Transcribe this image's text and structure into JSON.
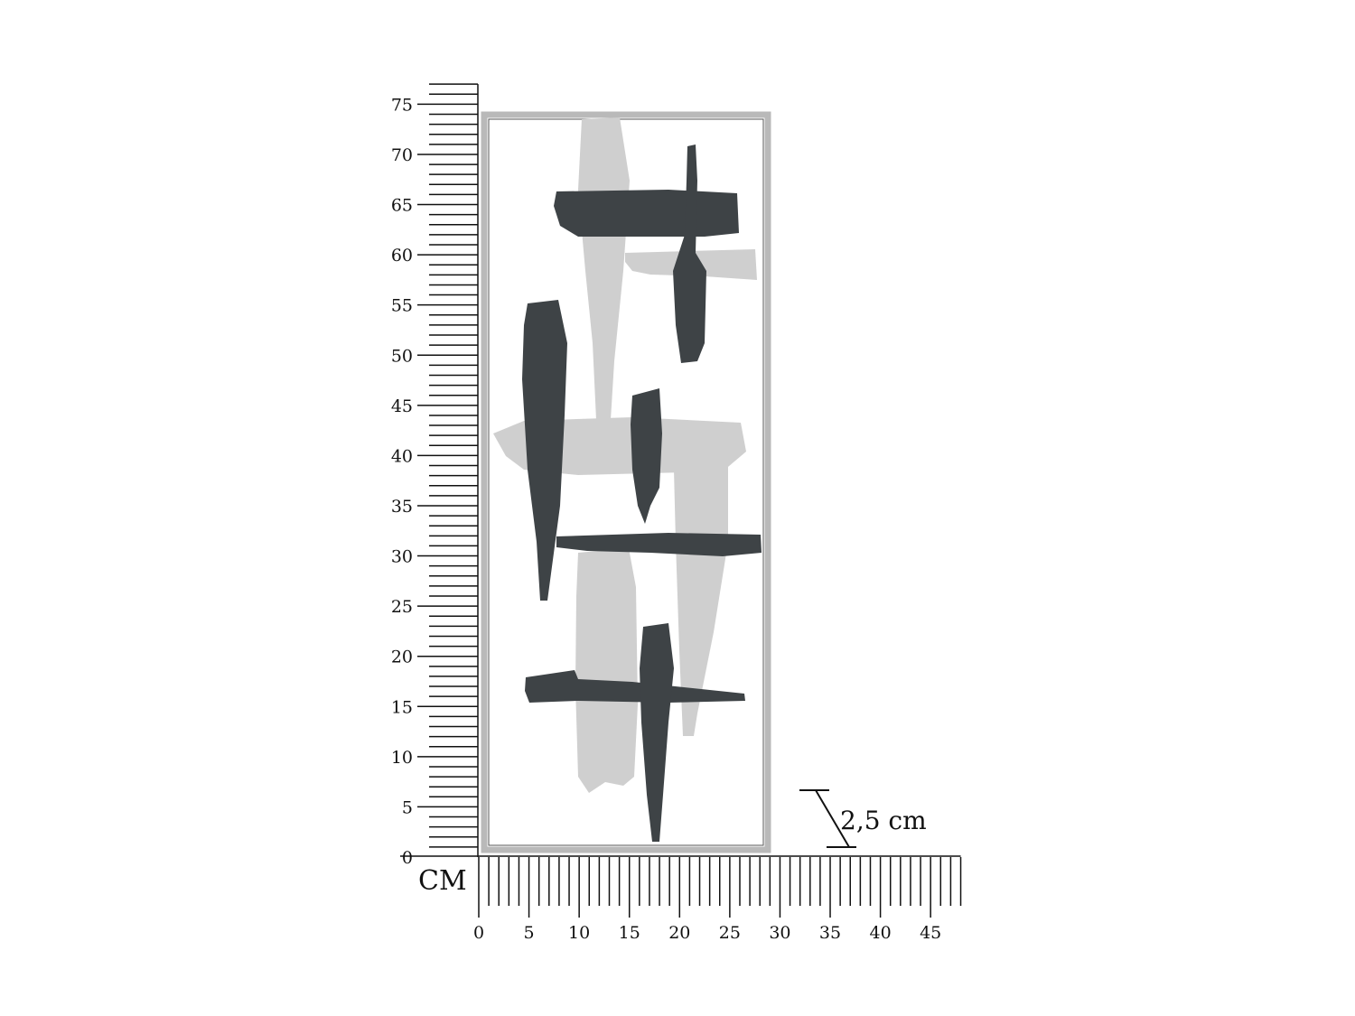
{
  "unit_label": "CM",
  "depth_label": "2,5 cm",
  "vertical_ruler": {
    "labels": [
      "0",
      "5",
      "10",
      "15",
      "20",
      "25",
      "30",
      "35",
      "40",
      "45",
      "50",
      "55",
      "60",
      "65",
      "70",
      "75"
    ],
    "max_cm": 77
  },
  "horizontal_ruler": {
    "labels": [
      "0",
      "5",
      "10",
      "15",
      "20",
      "25",
      "30",
      "35",
      "40",
      "45"
    ],
    "max_cm": 48
  },
  "product": {
    "width_cm": 29,
    "height_cm": 74,
    "depth_cm": 2.5
  },
  "colors": {
    "dark_metal": "#3e4346",
    "silver_metal": "#cfcfcf",
    "frame": "#b9b9b9",
    "ink": "#111111"
  }
}
